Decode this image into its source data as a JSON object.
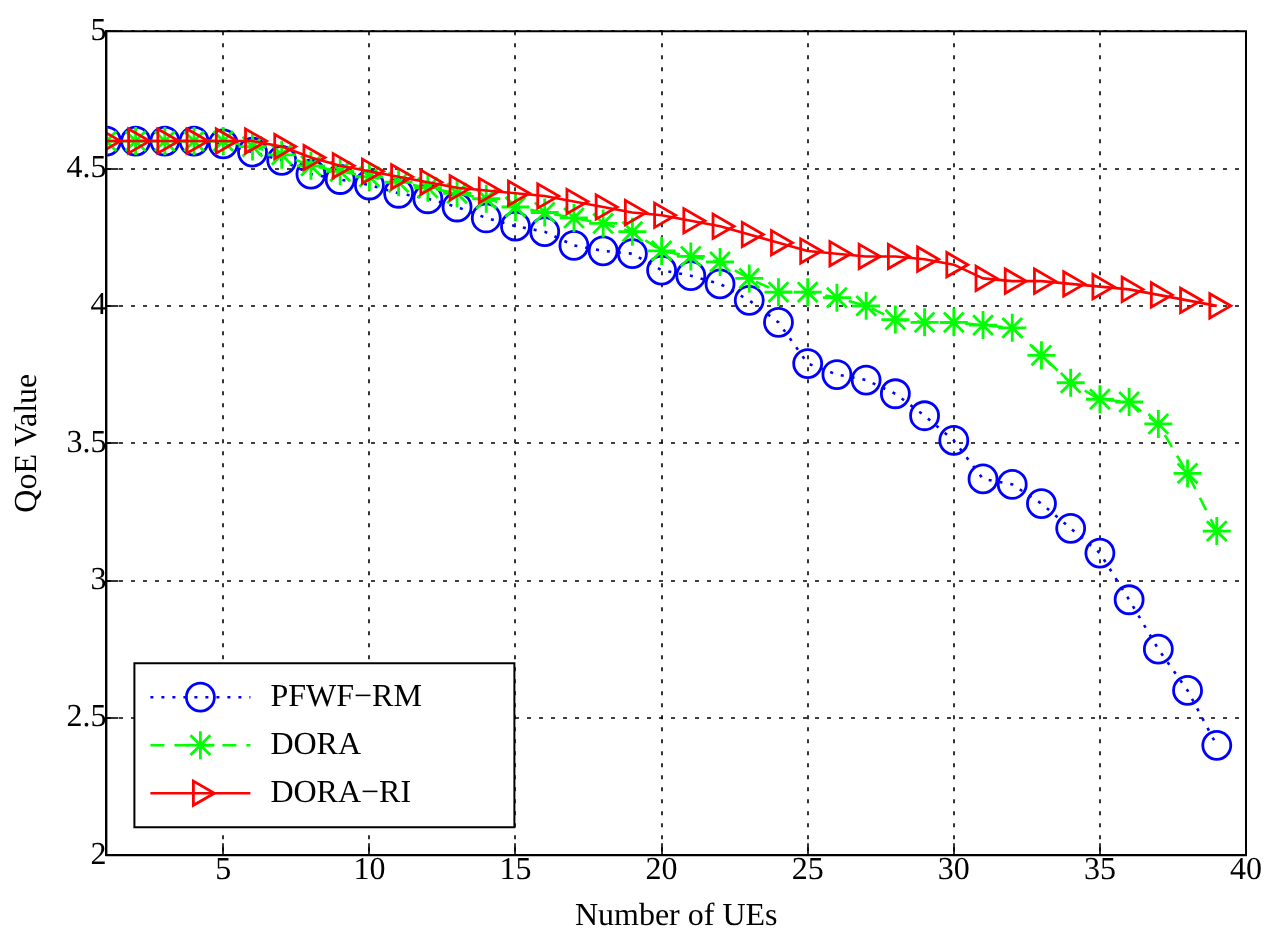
{
  "chart_data": {
    "type": "line",
    "xlabel": "Number of UEs",
    "ylabel": "QoE Value",
    "x": [
      1,
      2,
      3,
      4,
      5,
      6,
      7,
      8,
      9,
      10,
      11,
      12,
      13,
      14,
      15,
      16,
      17,
      18,
      19,
      20,
      21,
      22,
      23,
      24,
      25,
      26,
      27,
      28,
      29,
      30,
      31,
      32,
      33,
      34,
      35,
      36,
      37,
      38,
      39
    ],
    "series": [
      {
        "name": "PFWF−RM",
        "color": "#0000ff",
        "marker": "circle",
        "line_style": "dotted",
        "values": [
          4.6,
          4.6,
          4.6,
          4.6,
          4.59,
          4.56,
          4.53,
          4.48,
          4.46,
          4.44,
          4.41,
          4.39,
          4.36,
          4.32,
          4.29,
          4.27,
          4.22,
          4.2,
          4.19,
          4.13,
          4.11,
          4.08,
          4.02,
          3.94,
          3.79,
          3.75,
          3.73,
          3.68,
          3.6,
          3.51,
          3.37,
          3.35,
          3.28,
          3.19,
          3.1,
          2.93,
          2.75,
          2.6,
          2.4
        ]
      },
      {
        "name": "DORA",
        "color": "#00ff00",
        "marker": "cross",
        "line_style": "dashed",
        "values": [
          4.6,
          4.6,
          4.6,
          4.6,
          4.6,
          4.58,
          4.55,
          4.51,
          4.49,
          4.47,
          4.45,
          4.43,
          4.41,
          4.39,
          4.36,
          4.34,
          4.32,
          4.3,
          4.27,
          4.2,
          4.18,
          4.16,
          4.1,
          4.05,
          4.05,
          4.03,
          4.0,
          3.95,
          3.94,
          3.94,
          3.93,
          3.92,
          3.82,
          3.72,
          3.66,
          3.65,
          3.57,
          3.39,
          3.18
        ]
      },
      {
        "name": "DORA−RI",
        "color": "#ff0000",
        "marker": "triangle",
        "line_style": "solid",
        "values": [
          4.6,
          4.6,
          4.6,
          4.6,
          4.6,
          4.6,
          4.58,
          4.54,
          4.51,
          4.49,
          4.47,
          4.45,
          4.43,
          4.42,
          4.41,
          4.4,
          4.38,
          4.36,
          4.34,
          4.33,
          4.31,
          4.29,
          4.26,
          4.23,
          4.2,
          4.19,
          4.18,
          4.18,
          4.17,
          4.15,
          4.1,
          4.09,
          4.09,
          4.08,
          4.07,
          4.06,
          4.04,
          4.02,
          4.0
        ]
      }
    ],
    "xlim": [
      1,
      40
    ],
    "xticks": [
      5,
      10,
      15,
      20,
      25,
      30,
      35,
      40
    ],
    "ylim": [
      2,
      5
    ],
    "yticks": [
      2,
      2.5,
      3,
      3.5,
      4,
      4.5,
      5
    ],
    "grid": true,
    "legend": "bottom left"
  }
}
